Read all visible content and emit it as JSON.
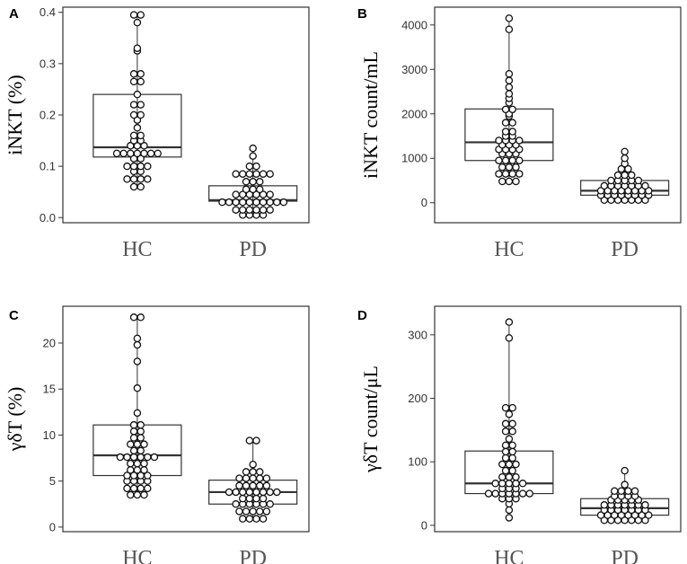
{
  "chart_data": [
    {
      "panel": "A",
      "type": "scatter",
      "subtype": "box-dotplot",
      "ylabel": "iNKT (%)",
      "ylim": [
        -0.01,
        0.41
      ],
      "yticks": [
        0.0,
        0.1,
        0.2,
        0.3,
        0.4
      ],
      "ytick_labels": [
        "0.0",
        "0.1",
        "0.2",
        "0.3",
        "0.4"
      ],
      "categories": [
        "HC",
        "PD"
      ],
      "series": [
        {
          "name": "HC",
          "box": {
            "q1": 0.118,
            "median": 0.137,
            "q3": 0.24,
            "whisker_low": 0.06,
            "whisker_high": 0.395
          },
          "values": [
            0.06,
            0.06,
            0.075,
            0.075,
            0.075,
            0.075,
            0.09,
            0.09,
            0.1,
            0.1,
            0.1,
            0.1,
            0.115,
            0.115,
            0.125,
            0.125,
            0.125,
            0.125,
            0.125,
            0.125,
            0.125,
            0.14,
            0.14,
            0.14,
            0.15,
            0.15,
            0.16,
            0.16,
            0.175,
            0.19,
            0.2,
            0.2,
            0.22,
            0.22,
            0.24,
            0.265,
            0.265,
            0.28,
            0.28,
            0.325,
            0.33,
            0.38,
            0.395,
            0.395
          ]
        },
        {
          "name": "PD",
          "box": {
            "q1": 0.032,
            "median": 0.034,
            "q3": 0.062,
            "whisker_low": 0.005,
            "whisker_high": 0.138
          },
          "values": [
            0.005,
            0.005,
            0.005,
            0.005,
            0.015,
            0.015,
            0.015,
            0.015,
            0.015,
            0.015,
            0.03,
            0.03,
            0.03,
            0.03,
            0.03,
            0.03,
            0.03,
            0.03,
            0.03,
            0.03,
            0.045,
            0.045,
            0.045,
            0.045,
            0.045,
            0.045,
            0.055,
            0.055,
            0.055,
            0.07,
            0.07,
            0.07,
            0.085,
            0.085,
            0.085,
            0.085,
            0.085,
            0.085,
            0.1,
            0.1,
            0.12,
            0.135
          ]
        }
      ]
    },
    {
      "panel": "B",
      "type": "scatter",
      "subtype": "box-dotplot",
      "ylabel": "iNKT count/mL",
      "ylim": [
        -450,
        4400
      ],
      "yticks": [
        0,
        1000,
        2000,
        3000,
        4000
      ],
      "ytick_labels": [
        "0",
        "1000",
        "2000",
        "3000",
        "4000"
      ],
      "categories": [
        "HC",
        "PD"
      ],
      "series": [
        {
          "name": "HC",
          "box": {
            "q1": 950,
            "median": 1360,
            "q3": 2110,
            "whisker_low": 480,
            "whisker_high": 4150
          },
          "values": [
            480,
            480,
            480,
            650,
            650,
            650,
            650,
            800,
            800,
            800,
            950,
            950,
            950,
            950,
            1100,
            1100,
            1100,
            1200,
            1200,
            1200,
            1200,
            1300,
            1300,
            1300,
            1400,
            1400,
            1400,
            1400,
            1500,
            1500,
            1600,
            1600,
            1800,
            1800,
            1950,
            2000,
            2100,
            2100,
            2250,
            2350,
            2450,
            2600,
            2750,
            2900,
            3900,
            4150
          ]
        },
        {
          "name": "PD",
          "box": {
            "q1": 170,
            "median": 270,
            "q3": 500,
            "whisker_low": 60,
            "whisker_high": 1150
          },
          "values": [
            60,
            60,
            60,
            60,
            60,
            60,
            60,
            170,
            170,
            170,
            170,
            170,
            170,
            170,
            170,
            270,
            270,
            270,
            270,
            270,
            270,
            270,
            270,
            380,
            380,
            380,
            380,
            380,
            380,
            380,
            500,
            500,
            500,
            500,
            500,
            620,
            620,
            620,
            760,
            760,
            880,
            1000,
            1150
          ]
        }
      ]
    },
    {
      "panel": "C",
      "type": "scatter",
      "subtype": "box-dotplot",
      "ylabel": "γδT (%)",
      "ylim": [
        -0.5,
        24.0
      ],
      "yticks": [
        0,
        5,
        10,
        15,
        20
      ],
      "ytick_labels": [
        "0",
        "5",
        "10",
        "15",
        "20"
      ],
      "categories": [
        "HC",
        "PD"
      ],
      "series": [
        {
          "name": "HC",
          "box": {
            "q1": 5.6,
            "median": 7.8,
            "q3": 11.1,
            "whisker_low": 3.5,
            "whisker_high": 22.8
          },
          "values": [
            3.5,
            3.5,
            3.5,
            4.2,
            4.2,
            4.2,
            4.2,
            5.0,
            5.0,
            5.0,
            5.0,
            5.6,
            5.6,
            5.6,
            5.6,
            6.2,
            6.2,
            6.2,
            6.9,
            6.9,
            6.9,
            7.6,
            7.6,
            7.6,
            7.6,
            7.6,
            7.6,
            8.3,
            8.3,
            9.0,
            9.0,
            9.0,
            9.7,
            9.7,
            10.4,
            10.4,
            11.1,
            11.1,
            12.4,
            15.1,
            18.0,
            19.8,
            20.5,
            22.8,
            22.8
          ]
        },
        {
          "name": "PD",
          "box": {
            "q1": 2.5,
            "median": 3.8,
            "q3": 5.1,
            "whisker_low": 0.9,
            "whisker_high": 9.4
          },
          "values": [
            0.9,
            0.9,
            0.9,
            0.9,
            1.7,
            1.7,
            1.7,
            1.7,
            1.7,
            2.5,
            2.5,
            2.5,
            2.5,
            2.5,
            2.5,
            3.1,
            3.1,
            3.1,
            3.1,
            3.8,
            3.8,
            3.8,
            3.8,
            3.8,
            3.8,
            3.8,
            3.8,
            4.5,
            4.5,
            4.5,
            4.5,
            4.5,
            5.3,
            5.3,
            5.3,
            5.3,
            5.3,
            6.0,
            6.0,
            6.0,
            6.8,
            9.4,
            9.4
          ]
        }
      ]
    },
    {
      "panel": "D",
      "type": "scatter",
      "subtype": "box-dotplot",
      "ylabel": "γδT count/μL",
      "ylim": [
        -10,
        345
      ],
      "yticks": [
        0,
        100,
        200,
        300
      ],
      "ytick_labels": [
        "0",
        "100",
        "200",
        "300"
      ],
      "categories": [
        "HC",
        "PD"
      ],
      "series": [
        {
          "name": "HC",
          "box": {
            "q1": 50,
            "median": 66,
            "q3": 117,
            "whisker_low": 12,
            "whisker_high": 320
          },
          "values": [
            12,
            24,
            34,
            42,
            42,
            42,
            50,
            50,
            50,
            50,
            50,
            50,
            50,
            58,
            58,
            58,
            66,
            66,
            66,
            66,
            66,
            76,
            76,
            76,
            86,
            86,
            96,
            96,
            96,
            106,
            106,
            116,
            116,
            126,
            126,
            136,
            148,
            148,
            160,
            160,
            175,
            185,
            185,
            295,
            320
          ]
        },
        {
          "name": "PD",
          "box": {
            "q1": 16,
            "median": 27,
            "q3": 42,
            "whisker_low": 8,
            "whisker_high": 86
          },
          "values": [
            8,
            8,
            8,
            8,
            8,
            8,
            8,
            16,
            16,
            16,
            16,
            16,
            16,
            16,
            16,
            24,
            24,
            24,
            24,
            24,
            24,
            24,
            32,
            32,
            32,
            32,
            32,
            32,
            32,
            40,
            40,
            40,
            40,
            40,
            46,
            46,
            46,
            46,
            54,
            54,
            54,
            54,
            64,
            86
          ]
        }
      ]
    }
  ]
}
